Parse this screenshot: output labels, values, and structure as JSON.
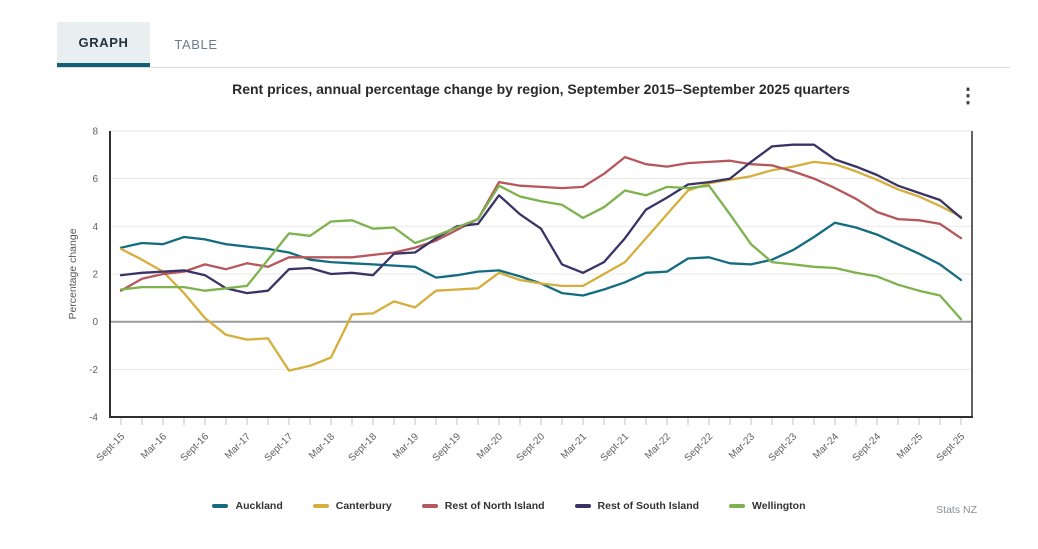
{
  "tabs": {
    "graph": "GRAPH",
    "table": "TABLE"
  },
  "title": "Rent prices, annual percentage change by region, September 2015–September 2025 quarters",
  "icons": {
    "more_options": "⋮"
  },
  "source": "Stats NZ",
  "colors": {
    "accent_tab_underline": "#115e77",
    "axis": "#2f2f2f",
    "zero_line": "#9b9b9b",
    "gridline": "#e8e8e8",
    "tick": "#b6c3d4",
    "tick_label": "#5f5f5f"
  },
  "chart_data": {
    "type": "line",
    "title": "Rent prices, annual percentage change by region, September 2015–September 2025 quarters",
    "ylabel": "Percentage change",
    "ylim": [
      -4,
      8
    ],
    "yticks": [
      8,
      6,
      4,
      2,
      0,
      -2,
      -4
    ],
    "grid": true,
    "zero_line": true,
    "legend_position": "bottom",
    "x_labels_shown_every": 2,
    "categories": [
      "Sept-15",
      "Dec-15",
      "Mar-16",
      "Jun-16",
      "Sept-16",
      "Dec-16",
      "Mar-17",
      "Jun-17",
      "Sept-17",
      "Dec-17",
      "Mar-18",
      "Jun-18",
      "Sept-18",
      "Dec-18",
      "Mar-19",
      "Jun-19",
      "Sept-19",
      "Dec-19",
      "Mar-20",
      "Jun-20",
      "Sept-20",
      "Dec-20",
      "Mar-21",
      "Jun-21",
      "Sept-21",
      "Dec-21",
      "Mar-22",
      "Jun-22",
      "Sept-22",
      "Dec-22",
      "Mar-23",
      "Jun-23",
      "Sept-23",
      "Dec-23",
      "Mar-24",
      "Jun-24",
      "Sept-24",
      "Dec-24",
      "Mar-25",
      "Jun-25",
      "Sept-25"
    ],
    "series": [
      {
        "name": "Auckland",
        "color": "#146c80",
        "values": [
          3.1,
          3.3,
          3.25,
          3.55,
          3.45,
          3.25,
          3.15,
          3.05,
          2.9,
          2.6,
          2.5,
          2.45,
          2.4,
          2.35,
          2.3,
          1.85,
          1.95,
          2.1,
          2.15,
          1.9,
          1.6,
          1.2,
          1.1,
          1.35,
          1.65,
          2.05,
          2.1,
          2.65,
          2.7,
          2.45,
          2.4,
          2.6,
          3.0,
          3.55,
          4.15,
          3.95,
          3.65,
          3.25,
          2.85,
          2.4,
          1.75
        ]
      },
      {
        "name": "Canterbury",
        "color": "#d5ae3c",
        "values": [
          3.05,
          2.6,
          2.1,
          1.2,
          0.15,
          -0.55,
          -0.75,
          -0.7,
          -2.05,
          -1.85,
          -1.5,
          0.3,
          0.35,
          0.85,
          0.6,
          1.3,
          1.35,
          1.4,
          2.05,
          1.75,
          1.6,
          1.5,
          1.5,
          2.0,
          2.5,
          3.5,
          4.5,
          5.5,
          5.8,
          5.95,
          6.1,
          6.35,
          6.5,
          6.7,
          6.6,
          6.3,
          5.95,
          5.55,
          5.25,
          4.85,
          4.4
        ]
      },
      {
        "name": "Rest of North Island",
        "color": "#b5575b",
        "values": [
          1.3,
          1.8,
          2.0,
          2.1,
          2.4,
          2.2,
          2.45,
          2.3,
          2.7,
          2.7,
          2.7,
          2.7,
          2.8,
          2.9,
          3.1,
          3.4,
          3.85,
          4.3,
          5.85,
          5.7,
          5.65,
          5.6,
          5.65,
          6.2,
          6.9,
          6.6,
          6.5,
          6.65,
          6.7,
          6.75,
          6.6,
          6.55,
          6.3,
          6.0,
          5.6,
          5.15,
          4.6,
          4.3,
          4.25,
          4.1,
          3.5
        ]
      },
      {
        "name": "Rest of South Island",
        "color": "#3a3366",
        "values": [
          1.95,
          2.05,
          2.1,
          2.15,
          1.95,
          1.4,
          1.2,
          1.3,
          2.2,
          2.25,
          2.0,
          2.05,
          1.95,
          2.85,
          2.9,
          3.5,
          4.0,
          4.1,
          5.3,
          4.5,
          3.9,
          2.4,
          2.05,
          2.5,
          3.5,
          4.7,
          5.2,
          5.75,
          5.85,
          6.0,
          6.7,
          7.35,
          7.42,
          7.42,
          6.8,
          6.5,
          6.15,
          5.7,
          5.4,
          5.1,
          4.35
        ]
      },
      {
        "name": "Wellington",
        "color": "#7db24d",
        "values": [
          1.35,
          1.45,
          1.45,
          1.45,
          1.3,
          1.4,
          1.5,
          2.6,
          3.7,
          3.6,
          4.2,
          4.25,
          3.9,
          3.95,
          3.3,
          3.6,
          3.95,
          4.3,
          5.7,
          5.25,
          5.05,
          4.9,
          4.35,
          4.8,
          5.5,
          5.3,
          5.65,
          5.6,
          5.7,
          4.5,
          3.25,
          2.5,
          2.4,
          2.3,
          2.25,
          2.05,
          1.9,
          1.55,
          1.3,
          1.1,
          0.1
        ]
      }
    ]
  }
}
